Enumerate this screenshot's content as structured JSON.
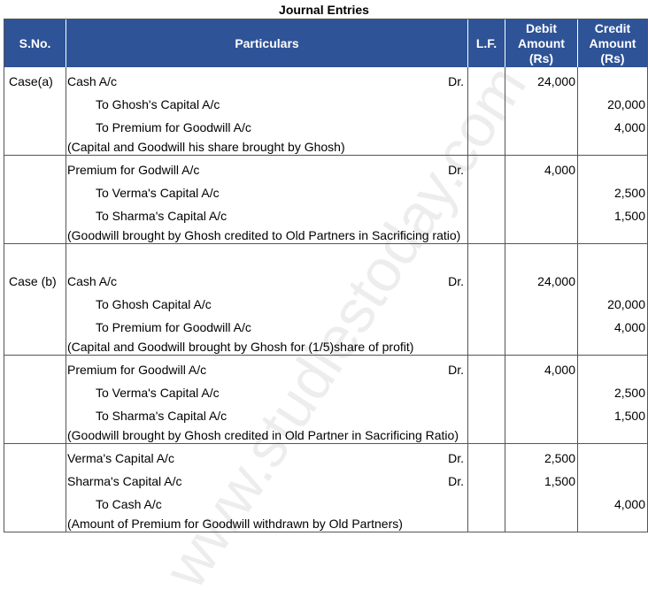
{
  "title": "Journal Entries",
  "header": [
    "S.No.",
    "Particulars",
    "L.F.",
    "Debit Amount (Rs)",
    "Credit Amount (Rs)"
  ],
  "watermark": "www.studiestoday.com",
  "entries": [
    {
      "lines": [
        {
          "sno": "Case(a)",
          "particulars": "Cash A/c",
          "dr": "Dr.",
          "debit": "24,000"
        },
        {
          "particulars": "To Ghosh's Capital A/c",
          "credit": "20,000"
        },
        {
          "particulars": "To Premium for Goodwill A/c",
          "credit": "4,000"
        }
      ],
      "narration": "(Capital and Goodwill his share brought by Ghosh)"
    },
    {
      "lines": [
        {
          "particulars": "Premium for Godwill A/c",
          "dr": "Dr.",
          "debit": "4,000"
        },
        {
          "particulars": "To Verma's Capital A/c",
          "credit": "2,500"
        },
        {
          "particulars": "To Sharma's Capital A/c",
          "credit": "1,500"
        }
      ],
      "narration": "(Goodwill brought by Ghosh credited to Old Partners in Sacrificing ratio)"
    },
    {
      "lines": [
        {
          "sno": "Case (b)",
          "particulars": "Cash A/c",
          "dr": "Dr.",
          "debit": "24,000"
        },
        {
          "particulars": "To Ghosh Capital A/c",
          "credit": "20,000"
        },
        {
          "particulars": "To Premium for Goodwill A/c",
          "credit": "4,000"
        }
      ],
      "narration": "(Capital and Goodwill brought by Ghosh for (1/5)share of profit)"
    },
    {
      "lines": [
        {
          "particulars": "Premium for Goodwill A/c",
          "dr": "Dr.",
          "debit": "4,000"
        },
        {
          "particulars": "To Verma's Capital A/c",
          "credit": "2,500"
        },
        {
          "particulars": "To Sharma's Capital A/c",
          "credit": "1,500"
        }
      ],
      "narration": "(Goodwill brought by Ghosh credited in Old Partner in Sacrificing Ratio)"
    },
    {
      "lines": [
        {
          "particulars": "Verma's Capital A/c",
          "dr": "Dr.",
          "debit": "2,500"
        },
        {
          "particulars": "Sharma's Capital A/c",
          "dr": "Dr.",
          "debit": "1,500"
        },
        {
          "particulars": "To Cash A/c",
          "credit": "4,000"
        }
      ],
      "narration": "(Amount of Premium for Goodwill withdrawn by Old Partners)"
    }
  ]
}
